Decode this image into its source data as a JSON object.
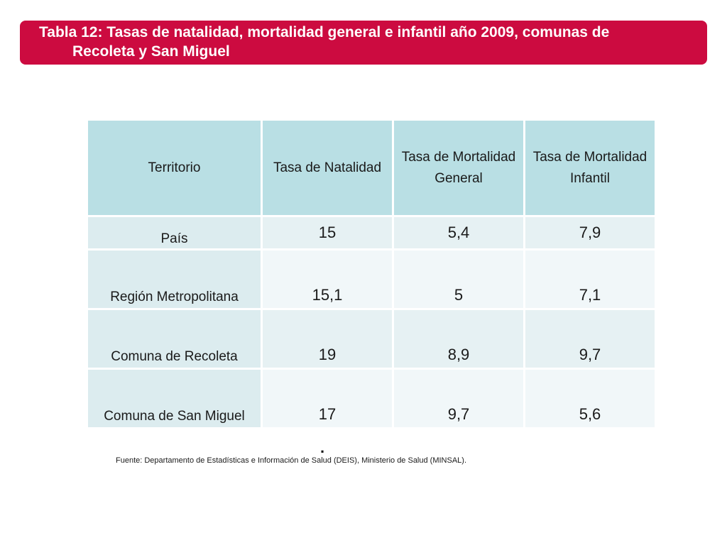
{
  "title": {
    "line1": "Tabla 12: Tasas de natalidad, mortalidad general e infantil año 2009, comunas de",
    "line2": "Recoleta y San Miguel",
    "background_color": "#cc0b40"
  },
  "table": {
    "headers": {
      "territorio": "Territorio",
      "natalidad": "Tasa de Natalidad",
      "mortalidad_general": "Tasa de Mortalidad General",
      "mortalidad_infantil": "Tasa de Mortalidad Infantil"
    },
    "rows": [
      {
        "territorio": "País",
        "natalidad": "15",
        "mortalidad_general": "5,4",
        "mortalidad_infantil": "7,9"
      },
      {
        "territorio": "Región Metropolitana",
        "natalidad": "15,1",
        "mortalidad_general": "5",
        "mortalidad_infantil": "7,1"
      },
      {
        "territorio": "Comuna de Recoleta",
        "natalidad": "19",
        "mortalidad_general": "8,9",
        "mortalidad_infantil": "9,7"
      },
      {
        "territorio": "Comuna de San Miguel",
        "natalidad": "17",
        "mortalidad_general": "9,7",
        "mortalidad_infantil": "5,6"
      }
    ],
    "header_color": "#b9dfe4"
  },
  "stray_mark": ".",
  "source": "Fuente: Departamento de Estadísticas e Información de Salud (DEIS), Ministerio de Salud (MINSAL)."
}
